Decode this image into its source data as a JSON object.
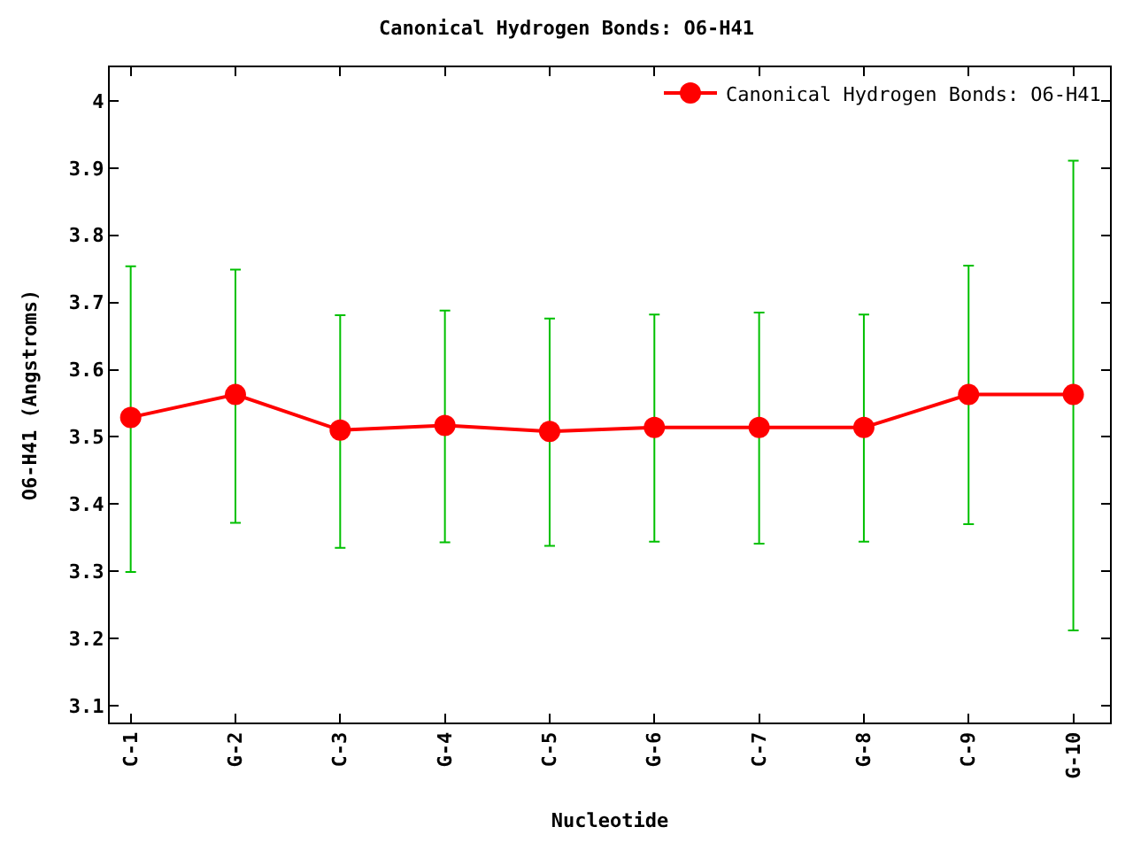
{
  "chart_data": {
    "type": "line",
    "title": "Canonical Hydrogen Bonds: O6-H41",
    "xlabel": "Nucleotide",
    "ylabel": "O6-H41 (Angstroms)",
    "categories": [
      "C-1",
      "G-2",
      "C-3",
      "G-4",
      "C-5",
      "G-6",
      "C-7",
      "G-8",
      "C-9",
      "G-10"
    ],
    "series": [
      {
        "name": "Canonical Hydrogen Bonds: O6-H41",
        "color": "#ff0000",
        "values": [
          3.529,
          3.563,
          3.51,
          3.517,
          3.508,
          3.514,
          3.514,
          3.514,
          3.563,
          3.563
        ],
        "errors": [
          [
            3.299,
            3.754
          ],
          [
            3.372,
            3.749
          ],
          [
            3.335,
            3.681
          ],
          [
            3.343,
            3.688
          ],
          [
            3.338,
            3.676
          ],
          [
            3.344,
            3.682
          ],
          [
            3.341,
            3.685
          ],
          [
            3.344,
            3.682
          ],
          [
            3.37,
            3.755
          ],
          [
            3.212,
            3.911
          ]
        ]
      }
    ],
    "ylim": [
      3.075,
      4.05
    ],
    "yticks": [
      3.1,
      3.2,
      3.3,
      3.4,
      3.5,
      3.6,
      3.7,
      3.8,
      3.9,
      4
    ],
    "grid": false,
    "legend": "top right",
    "marker": "circle",
    "line_style": "solid"
  }
}
